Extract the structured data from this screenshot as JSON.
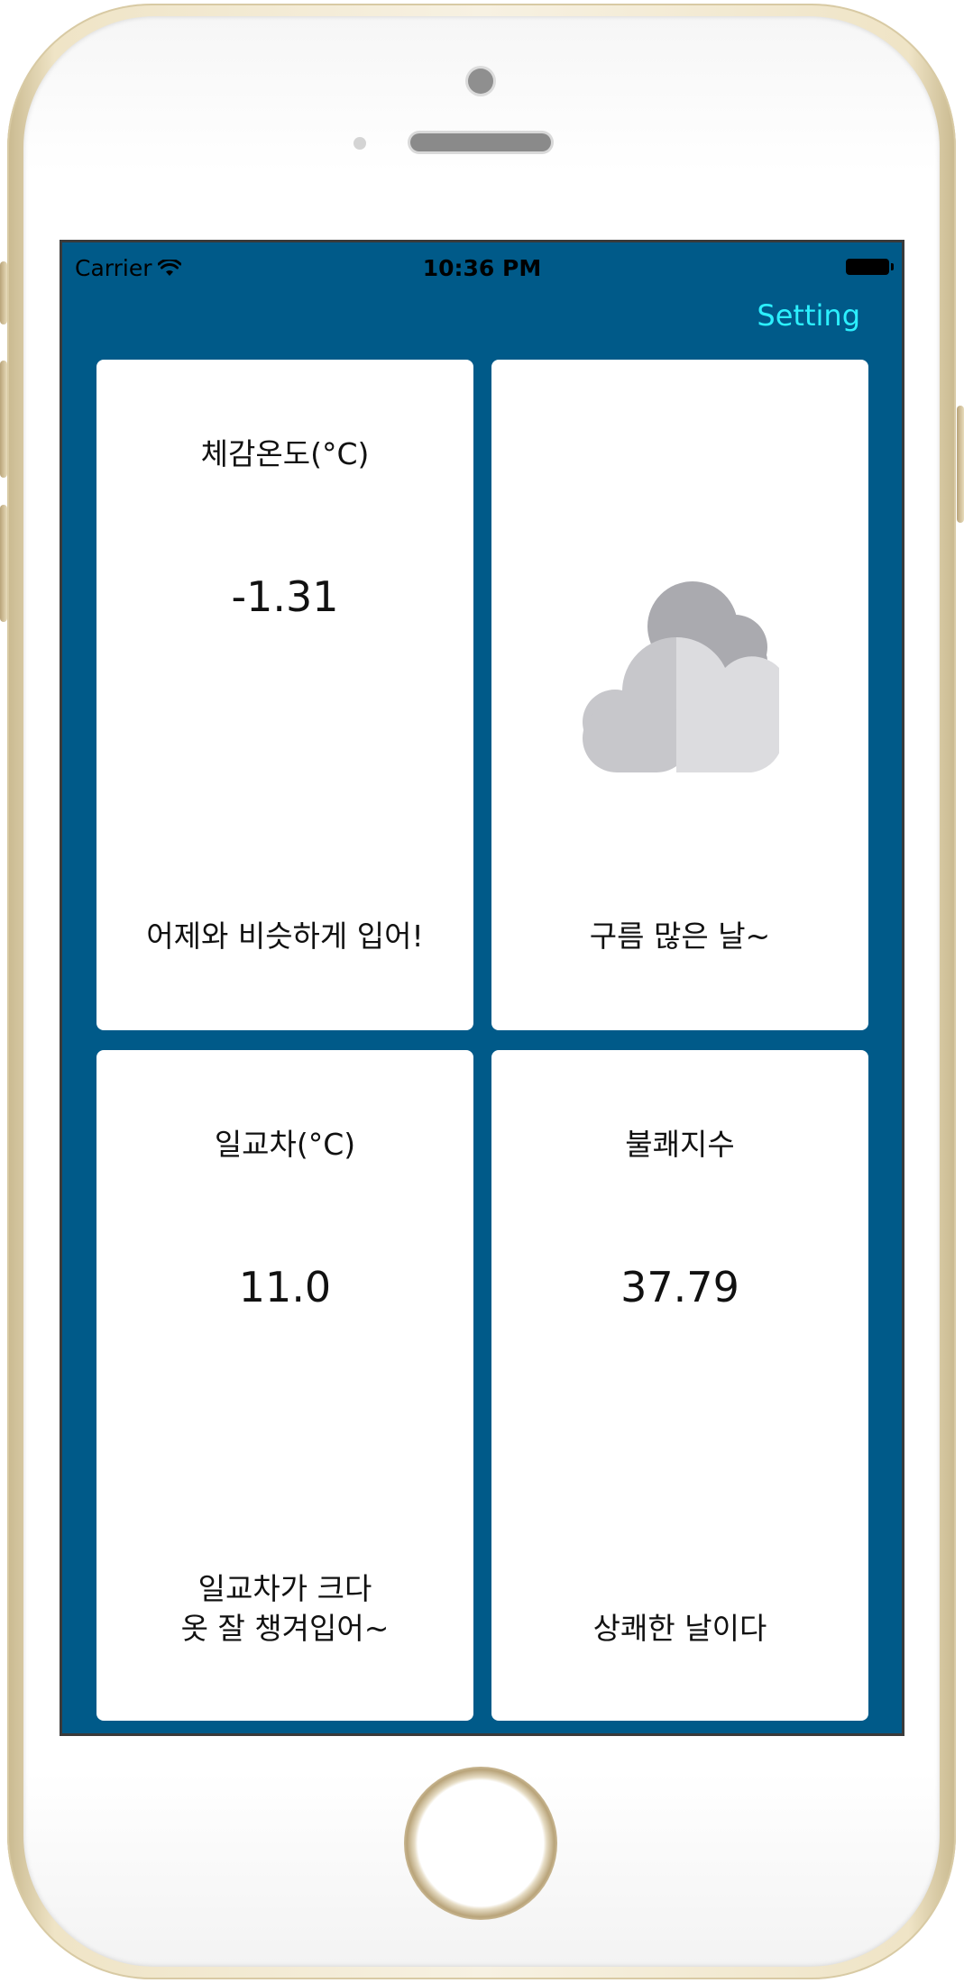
{
  "status_bar": {
    "carrier": "Carrier",
    "time": "10:36 PM",
    "wifi_icon": "wifi-icon",
    "battery_icon": "battery-icon"
  },
  "nav": {
    "setting_label": "Setting",
    "setting_color": "#2cf0ff"
  },
  "theme": {
    "screen_background": "#005a89",
    "card_background": "#ffffff"
  },
  "cards": {
    "feels_like": {
      "title": "체감온도(°C)",
      "value": "-1.31",
      "message": "어제와 비슷하게 입어!"
    },
    "weather": {
      "icon": "cloudy-icon",
      "message": "구름 많은 날~"
    },
    "temp_range": {
      "title": "일교차(°C)",
      "value": "11.0",
      "message": "일교차가 크다\n옷 잘 챙겨입어~"
    },
    "discomfort": {
      "title": "불쾌지수",
      "value": "37.79",
      "message": "상쾌한 날이다"
    }
  }
}
